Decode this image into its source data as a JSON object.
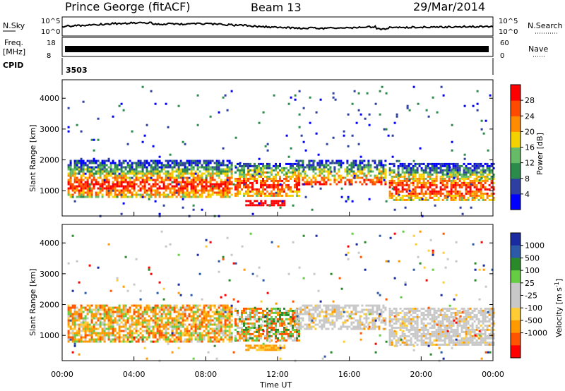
{
  "header": {
    "station": "Prince George (fitACF)",
    "beam": "Beam 13",
    "date": "29/Mar/2014"
  },
  "sky_panel": {
    "left_label": "N.Sky",
    "right_label": "N.Search",
    "left_ticks": [
      "10^5",
      "10^0"
    ],
    "right_ticks": [
      "10^5",
      "10^0"
    ]
  },
  "freq_panel": {
    "left_label_1": "Freq.",
    "left_label_2": "[MHz]",
    "right_label": "Nave",
    "left_ticks": [
      "18",
      "8"
    ],
    "right_ticks": [
      "60",
      "0"
    ]
  },
  "cpid": {
    "label": "CPID",
    "value": "3503"
  },
  "colors": {
    "power": [
      "#0000ff",
      "#2d3fa0",
      "#2c8a4a",
      "#66bb66",
      "#f2d200",
      "#ff8c00",
      "#ff4a00",
      "#ff0000"
    ],
    "velocity": [
      "#ff0000",
      "#ff5500",
      "#ff9900",
      "#ffcc33",
      "#c8c8c8",
      "#c8c8c8",
      "#66cc44",
      "#2a8a2a",
      "#2c5aa8",
      "#1a2aa0"
    ]
  },
  "chart_data": [
    {
      "type": "heatmap",
      "quantity": "power",
      "ylabel": "Slant Range [km]",
      "yticks": [
        1000,
        2000,
        3000,
        4000
      ],
      "ylim": [
        180,
        4600
      ],
      "xlim": [
        0,
        24
      ],
      "colorbar_label": "Power [dB]",
      "colorbar_ticks": [
        "4",
        "8",
        "12",
        "16",
        "20",
        "24",
        "28"
      ],
      "colorbar_range": [
        0,
        32
      ]
    },
    {
      "type": "heatmap",
      "quantity": "velocity",
      "ylabel": "Slant Range [km]",
      "yticks": [
        1000,
        2000,
        3000,
        4000
      ],
      "ylim": [
        180,
        4600
      ],
      "xlim": [
        0,
        24
      ],
      "xticks": [
        "00:00",
        "04:00",
        "08:00",
        "12:00",
        "16:00",
        "20:00",
        "00:00"
      ],
      "xlabel": "Time UT",
      "colorbar_label": "Velocity [m s^-1]",
      "colorbar_ticks": [
        "1000",
        "500",
        "100",
        "25",
        "-25",
        "-100",
        "-500",
        "-1000"
      ]
    }
  ]
}
